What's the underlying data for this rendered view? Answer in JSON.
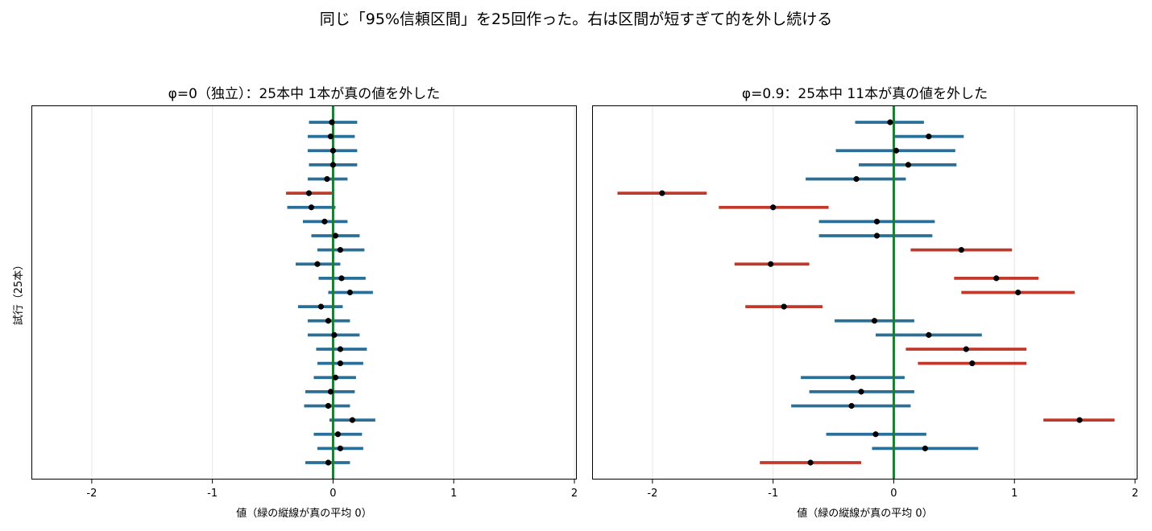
{
  "suptitle": "同じ「95%信頼区間」を25回作った。右は区間が短すぎて的を外し続ける",
  "colors": {
    "hit": "#2a6f97",
    "miss": "#c0392b",
    "true_line": "#1e7b34",
    "point": "#000000",
    "grid": "#e6e6e6"
  },
  "chart_data": [
    {
      "type": "errorbar",
      "title": "φ=0（独立）：25本中 1本が真の値を外した",
      "xlabel": "値（緑の縦線が真の平均 0）",
      "ylabel": "試行（25本）",
      "xlim": [
        -2.5,
        2.02
      ],
      "xticks": [
        -2,
        -1,
        0,
        1,
        2
      ],
      "grid": "x",
      "true_value": 0,
      "intervals": [
        {
          "est": -0.01,
          "lo": -0.2,
          "hi": 0.2,
          "miss": false
        },
        {
          "est": -0.02,
          "lo": -0.21,
          "hi": 0.18,
          "miss": false
        },
        {
          "est": 0.0,
          "lo": -0.21,
          "hi": 0.2,
          "miss": false
        },
        {
          "est": 0.0,
          "lo": -0.2,
          "hi": 0.2,
          "miss": false
        },
        {
          "est": -0.05,
          "lo": -0.21,
          "hi": 0.12,
          "miss": false
        },
        {
          "est": -0.2,
          "lo": -0.39,
          "hi": -0.01,
          "miss": true
        },
        {
          "est": -0.18,
          "lo": -0.38,
          "hi": 0.02,
          "miss": false
        },
        {
          "est": -0.07,
          "lo": -0.25,
          "hi": 0.12,
          "miss": false
        },
        {
          "est": 0.02,
          "lo": -0.18,
          "hi": 0.22,
          "miss": false
        },
        {
          "est": 0.06,
          "lo": -0.13,
          "hi": 0.26,
          "miss": false
        },
        {
          "est": -0.13,
          "lo": -0.31,
          "hi": 0.06,
          "miss": false
        },
        {
          "est": 0.07,
          "lo": -0.12,
          "hi": 0.27,
          "miss": false
        },
        {
          "est": 0.14,
          "lo": -0.04,
          "hi": 0.33,
          "miss": false
        },
        {
          "est": -0.1,
          "lo": -0.29,
          "hi": 0.08,
          "miss": false
        },
        {
          "est": -0.04,
          "lo": -0.21,
          "hi": 0.14,
          "miss": false
        },
        {
          "est": 0.01,
          "lo": -0.21,
          "hi": 0.22,
          "miss": false
        },
        {
          "est": 0.06,
          "lo": -0.14,
          "hi": 0.28,
          "miss": false
        },
        {
          "est": 0.06,
          "lo": -0.13,
          "hi": 0.25,
          "miss": false
        },
        {
          "est": 0.02,
          "lo": -0.16,
          "hi": 0.19,
          "miss": false
        },
        {
          "est": -0.02,
          "lo": -0.23,
          "hi": 0.18,
          "miss": false
        },
        {
          "est": -0.04,
          "lo": -0.24,
          "hi": 0.14,
          "miss": false
        },
        {
          "est": 0.16,
          "lo": -0.03,
          "hi": 0.35,
          "miss": false
        },
        {
          "est": 0.04,
          "lo": -0.16,
          "hi": 0.24,
          "miss": false
        },
        {
          "est": 0.06,
          "lo": -0.13,
          "hi": 0.25,
          "miss": false
        },
        {
          "est": -0.04,
          "lo": -0.23,
          "hi": 0.14,
          "miss": false
        }
      ]
    },
    {
      "type": "errorbar",
      "title": "φ=0.9：25本中 11本が真の値を外した",
      "xlabel": "値（緑の縦線が真の平均 0）",
      "xlim": [
        -2.5,
        2.02
      ],
      "xticks": [
        -2,
        -1,
        0,
        1,
        2
      ],
      "grid": "x",
      "true_value": 0,
      "intervals": [
        {
          "est": -0.03,
          "lo": -0.32,
          "hi": 0.25,
          "miss": false
        },
        {
          "est": 0.29,
          "lo": 0.0,
          "hi": 0.58,
          "miss": false
        },
        {
          "est": 0.02,
          "lo": -0.48,
          "hi": 0.51,
          "miss": false
        },
        {
          "est": 0.12,
          "lo": -0.29,
          "hi": 0.52,
          "miss": false
        },
        {
          "est": -0.31,
          "lo": -0.73,
          "hi": 0.1,
          "miss": false
        },
        {
          "est": -1.92,
          "lo": -2.29,
          "hi": -1.55,
          "miss": true
        },
        {
          "est": -1.0,
          "lo": -1.45,
          "hi": -0.54,
          "miss": true
        },
        {
          "est": -0.14,
          "lo": -0.62,
          "hi": 0.34,
          "miss": false
        },
        {
          "est": -0.14,
          "lo": -0.62,
          "hi": 0.32,
          "miss": false
        },
        {
          "est": 0.56,
          "lo": 0.14,
          "hi": 0.98,
          "miss": true
        },
        {
          "est": -1.02,
          "lo": -1.32,
          "hi": -0.7,
          "miss": true
        },
        {
          "est": 0.85,
          "lo": 0.5,
          "hi": 1.2,
          "miss": true
        },
        {
          "est": 1.03,
          "lo": 0.56,
          "hi": 1.5,
          "miss": true
        },
        {
          "est": -0.91,
          "lo": -1.23,
          "hi": -0.59,
          "miss": true
        },
        {
          "est": -0.16,
          "lo": -0.49,
          "hi": 0.17,
          "miss": false
        },
        {
          "est": 0.29,
          "lo": -0.15,
          "hi": 0.73,
          "miss": false
        },
        {
          "est": 0.6,
          "lo": 0.1,
          "hi": 1.1,
          "miss": true
        },
        {
          "est": 0.65,
          "lo": 0.2,
          "hi": 1.1,
          "miss": true
        },
        {
          "est": -0.34,
          "lo": -0.77,
          "hi": 0.09,
          "miss": false
        },
        {
          "est": -0.27,
          "lo": -0.7,
          "hi": 0.17,
          "miss": false
        },
        {
          "est": -0.35,
          "lo": -0.85,
          "hi": 0.14,
          "miss": false
        },
        {
          "est": 1.54,
          "lo": 1.24,
          "hi": 1.83,
          "miss": true
        },
        {
          "est": -0.15,
          "lo": -0.56,
          "hi": 0.27,
          "miss": false
        },
        {
          "est": 0.26,
          "lo": -0.18,
          "hi": 0.7,
          "miss": false
        },
        {
          "est": -0.69,
          "lo": -1.11,
          "hi": -0.27,
          "miss": true
        }
      ]
    }
  ]
}
